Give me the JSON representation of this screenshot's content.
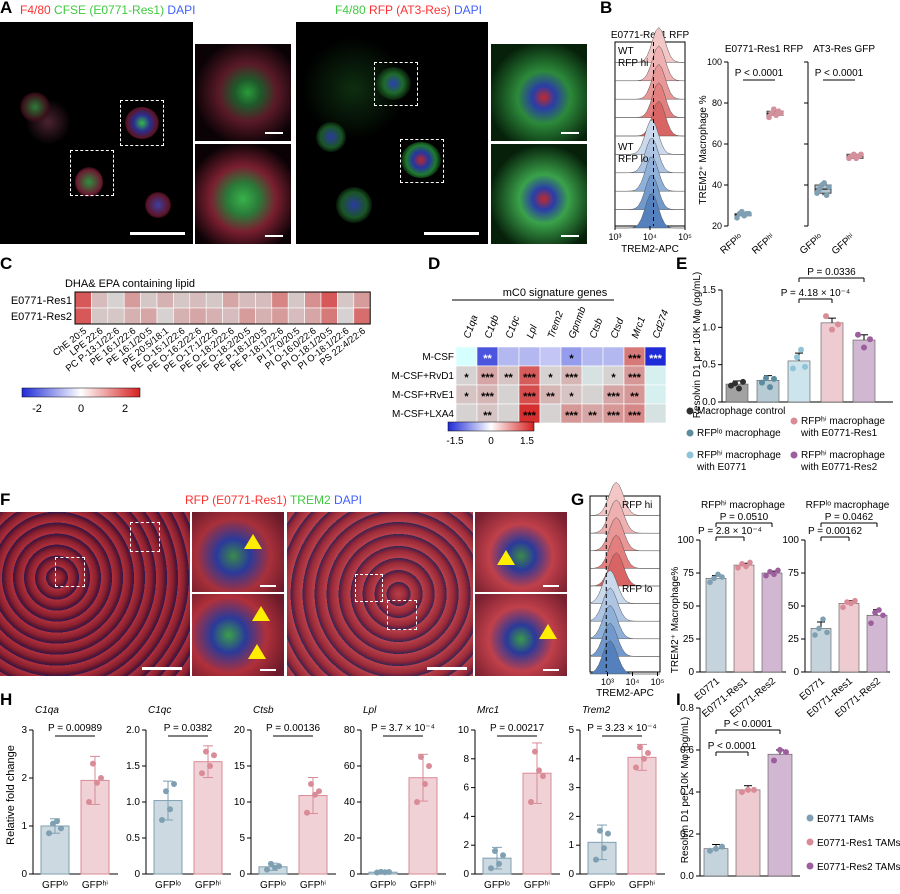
{
  "panels": {
    "A": {
      "letter": "A",
      "left_channels": [
        {
          "text": "F4/80",
          "color": "#ff3030"
        },
        {
          "text": "CFSE (E0771-Res1)",
          "color": "#3ec93e"
        },
        {
          "text": "DAPI",
          "color": "#4060ff"
        }
      ],
      "right_channels": [
        {
          "text": "F4/80",
          "color": "#3ec93e"
        },
        {
          "text": "RFP (AT3-Res)",
          "color": "#ff3030"
        },
        {
          "text": "DAPI",
          "color": "#4060ff"
        }
      ]
    },
    "B": {
      "letter": "B",
      "hist_title": "E0771-Res1 RFP",
      "hist_labels": [
        "WT",
        "RFP hi",
        "WT",
        "RFP lo"
      ],
      "hist_axis": "TREM2-APC",
      "hist_ticks": [
        "10³",
        "10⁴",
        "10⁵"
      ],
      "y_label": "TREM2⁺ Macrophage %",
      "y_ticks": [
        "20",
        "40",
        "60",
        "80",
        "100"
      ],
      "plots": [
        {
          "title": "E0771-Res1 RFP",
          "cats": [
            "RFPˡᵒ",
            "RFPʰⁱ"
          ],
          "p": "P < 0.0001",
          "groups": [
            {
              "values": [
                24,
                26,
                27,
                25,
                26,
                26
              ],
              "mean": 25.5,
              "color": "#7f9fb2"
            },
            {
              "values": [
                73,
                75,
                77,
                74,
                76,
                75
              ],
              "mean": 75,
              "color": "#d4909c"
            }
          ]
        },
        {
          "title": "AT3-Res GFP",
          "cats": [
            "GFPˡᵒ",
            "GFPʰⁱ"
          ],
          "p": "P < 0.0001",
          "groups": [
            {
              "values": [
                36,
                38,
                40,
                41,
                35,
                39
              ],
              "mean": 38,
              "color": "#7f9fb2"
            },
            {
              "values": [
                53,
                54,
                55,
                53,
                54,
                55
              ],
              "mean": 54,
              "color": "#d4909c"
            }
          ]
        }
      ]
    },
    "C": {
      "letter": "C",
      "title": "DHA& EPA containing lipid",
      "rows": [
        "E0771-Res1",
        "E0771-Res2"
      ],
      "cols": [
        "ChE 20:5",
        "LPE 22:6",
        "PC P-13:1/22:6",
        "PE 16:1/22:6",
        "PE 16:1/20:5",
        "PE 20:5/18:1",
        "PE O-15:1/22:6",
        "PE O-16:2/22:6",
        "PE O-17:1/22:6",
        "PE O-18:2/22:6",
        "PE O-18:2/20:5",
        "PE P-18:1/20:5",
        "PE P-18:1/22:6",
        "PI 17:0/20:5",
        "PI O-16:0/22:6",
        "PI O-18:1/20:5",
        "PI O-18:1/22:6",
        "PS 22:4/22:6"
      ],
      "values": [
        [
          1.5,
          0.6,
          0.4,
          0.9,
          0.5,
          0.7,
          0.5,
          0.6,
          0.5,
          0.8,
          0.6,
          0.6,
          1.1,
          0.5,
          1.0,
          1.5,
          0.5,
          0.9
        ],
        [
          1.5,
          0.5,
          0.5,
          0.7,
          0.8,
          0.4,
          0.7,
          0.8,
          0.7,
          0.6,
          0.9,
          0.7,
          0.9,
          0.6,
          0.8,
          1.2,
          0.4,
          1.3
        ]
      ],
      "legend_ticks": [
        "-2",
        "0",
        "2"
      ]
    },
    "D": {
      "letter": "D",
      "title": "mC0 signature genes",
      "genes": [
        "C1qa",
        "C1qb",
        "C1qc",
        "Lpl",
        "Trem2",
        "Gpnmb",
        "Ctsb",
        "Ctsd",
        "Mrc1",
        "Cd274"
      ],
      "rows": [
        "M-CSF",
        "M-CSF+RvD1",
        "M-CSF+RvE1",
        "M-CSF+LXA4"
      ],
      "values": [
        [
          0,
          -1.2,
          -0.5,
          -0.5,
          -0.4,
          -0.7,
          -0.5,
          -0.5,
          0.9,
          -1.5
        ],
        [
          0.3,
          0.6,
          0.4,
          1.1,
          0.3,
          0.5,
          0.2,
          0.3,
          0.7,
          0.1
        ],
        [
          0.4,
          0.5,
          0.3,
          1.2,
          0.5,
          0.4,
          0.3,
          0.6,
          0.7,
          0.1
        ],
        [
          0.3,
          0.4,
          0.3,
          1.4,
          0.3,
          0.7,
          0.6,
          0.7,
          0.8,
          0.2
        ]
      ],
      "stars": [
        [
          "",
          "**",
          "",
          "",
          "",
          "*",
          "",
          "",
          "***",
          "***"
        ],
        [
          "*",
          "***",
          "**",
          "***",
          "*",
          "***",
          "",
          "*",
          "***",
          ""
        ],
        [
          "*",
          "***",
          "",
          "***",
          "**",
          "*",
          "",
          "***",
          "**",
          ""
        ],
        [
          "",
          "**",
          "",
          "***",
          "",
          "***",
          "**",
          "***",
          "***",
          ""
        ]
      ],
      "legend_ticks": [
        "-1.5",
        "0",
        "1.5"
      ]
    },
    "E": {
      "letter": "E",
      "y_label": "Resolvin D1 per 10K Mφ (pg/mL)",
      "y_ticks": [
        "0.0",
        "0.5",
        "1.0",
        "1.5"
      ],
      "p_values": [
        "P = 0.0336",
        "P = 4.18 × 10⁻⁴"
      ],
      "bars": [
        {
          "mean": 0.24,
          "points": [
            0.22,
            0.25,
            0.18,
            0.27
          ],
          "color": "#303030"
        },
        {
          "mean": 0.29,
          "points": [
            0.26,
            0.32,
            0.2,
            0.31
          ],
          "color": "#5d8ba0"
        },
        {
          "mean": 0.55,
          "points": [
            0.45,
            0.6,
            0.7,
            0.47
          ],
          "color": "#8fc3d8"
        },
        {
          "mean": 1.06,
          "points": [
            1.15,
            0.97,
            1.04
          ],
          "color": "#d98b97"
        },
        {
          "mean": 0.83,
          "points": [
            0.9,
            0.73,
            0.84
          ],
          "color": "#9c5e9c"
        }
      ],
      "legend": [
        "Macrophage control",
        "RFPˡᵒ macrophage",
        "RFPʰⁱ macrophage with E0771",
        "RFPʰⁱ macrophage with E0771-Res1",
        "RFPʰⁱ macrophage with E0771-Res2"
      ]
    },
    "F": {
      "letter": "F",
      "channels": [
        {
          "text": "RFP (E0771-Res1)",
          "color": "#ff3030"
        },
        {
          "text": "TREM2",
          "color": "#3ec93e"
        },
        {
          "text": "DAPI",
          "color": "#4060ff"
        }
      ]
    },
    "G": {
      "letter": "G",
      "hist_labels": [
        "RFP hi",
        "RFP lo"
      ],
      "hist_axis": "TREM2-APC",
      "hist_ticks": [
        "10³",
        "10⁴",
        "10⁵"
      ],
      "y_label": "TREM2⁺ Macrophage%",
      "y_ticks": [
        "0",
        "25",
        "50",
        "75",
        "100"
      ],
      "cats": [
        "E0771",
        "E0771-Res1",
        "E0771-Res2"
      ],
      "plots": [
        {
          "title": "RFPʰⁱ macrophage",
          "p": [
            "P = 0.0510",
            "P = 2.8 × 10⁻⁴"
          ],
          "bars": [
            {
              "mean": 71,
              "points": [
                68,
                71,
                74,
                72
              ]
            },
            {
              "mean": 81,
              "points": [
                79,
                82,
                80,
                83
              ]
            },
            {
              "mean": 75,
              "points": [
                73,
                76,
                74,
                77
              ]
            }
          ]
        },
        {
          "title": "RFPˡᵒ macrophage",
          "p": [
            "P = 0.0462",
            "P = 0.00162"
          ],
          "bars": [
            {
              "mean": 33,
              "points": [
                28,
                33,
                40,
                30
              ]
            },
            {
              "mean": 52,
              "points": [
                49,
                53,
                52,
                54
              ]
            },
            {
              "mean": 43,
              "points": [
                37,
                45,
                47,
                43
              ]
            }
          ]
        }
      ],
      "colors": [
        "#7f9fb2",
        "#d98b97",
        "#9c5e9c"
      ]
    },
    "H": {
      "letter": "H",
      "y_label": "Relative fold change",
      "cats": [
        "GFPˡᵒ",
        "GFPʰⁱ"
      ],
      "plots": [
        {
          "gene": "C1qa",
          "p": "P = 0.00989",
          "ylim": [
            0,
            3
          ],
          "ticks": [
            "0",
            "1",
            "2",
            "3"
          ],
          "lo": {
            "mean": 1.0,
            "sd": 0.15,
            "points": [
              0.85,
              1.05,
              1.1,
              0.95
            ]
          },
          "hi": {
            "mean": 1.95,
            "sd": 0.5,
            "points": [
              1.5,
              2.3,
              1.9,
              2.0
            ]
          }
        },
        {
          "gene": "C1qc",
          "p": "P = 0.0382",
          "ylim": [
            0,
            2.0
          ],
          "ticks": [
            "0",
            "0.5",
            "1.0",
            "1.5",
            "2.0"
          ],
          "lo": {
            "mean": 1.02,
            "sd": 0.27,
            "points": [
              0.75,
              1.15,
              0.9,
              1.25
            ]
          },
          "hi": {
            "mean": 1.56,
            "sd": 0.22,
            "points": [
              1.4,
              1.7,
              1.5,
              1.65
            ]
          }
        },
        {
          "gene": "Ctsb",
          "p": "P = 0.00136",
          "ylim": [
            0,
            20
          ],
          "ticks": [
            "0",
            "5",
            "10",
            "15",
            "20"
          ],
          "lo": {
            "mean": 1.0,
            "sd": 0.5,
            "points": [
              0.6,
              1.4,
              0.9,
              1.1
            ]
          },
          "hi": {
            "mean": 10.9,
            "sd": 2.5,
            "points": [
              8.5,
              12.5,
              11.0,
              11.5
            ]
          }
        },
        {
          "gene": "Lpl",
          "p": "P = 3.7 × 10⁻⁴",
          "ylim": [
            0,
            80
          ],
          "ticks": [
            "0",
            "20",
            "40",
            "60",
            "80"
          ],
          "lo": {
            "mean": 1.0,
            "sd": 0.4,
            "points": [
              0.8,
              1.2,
              1.0,
              1.1
            ]
          },
          "hi": {
            "mean": 53.5,
            "sd": 13,
            "points": [
              40,
              65,
              50,
              60
            ]
          }
        },
        {
          "gene": "Mrc1",
          "p": "P = 0.00217",
          "ylim": [
            0,
            10
          ],
          "ticks": [
            "0",
            "2",
            "4",
            "6",
            "8",
            "10"
          ],
          "lo": {
            "mean": 1.1,
            "sd": 0.75,
            "points": [
              0.4,
              1.6,
              0.7,
              1.3
            ]
          },
          "hi": {
            "mean": 7.0,
            "sd": 2.1,
            "points": [
              5.0,
              8.5,
              7.2,
              6.8
            ]
          }
        },
        {
          "gene": "Trem2",
          "p": "P = 3.23 × 10⁻⁴",
          "ylim": [
            0,
            5
          ],
          "ticks": [
            "0",
            "1",
            "2",
            "3",
            "4",
            "5"
          ],
          "lo": {
            "mean": 1.1,
            "sd": 0.6,
            "points": [
              0.5,
              1.5,
              0.9,
              1.4
            ]
          },
          "hi": {
            "mean": 4.05,
            "sd": 0.45,
            "points": [
              3.7,
              4.4,
              4.0,
              4.2
            ]
          }
        }
      ],
      "colors": [
        "#7f9fb2",
        "#d98b97"
      ]
    },
    "I": {
      "letter": "I",
      "y_label": "Resolvin D1 per 10K Mφ (pg/mL)",
      "y_ticks": [
        "0.0",
        "0.2",
        "0.4",
        "0.6",
        "0.8"
      ],
      "p_values": [
        "P < 0.0001",
        "P < 0.0001"
      ],
      "bars": [
        {
          "mean": 0.13,
          "points": [
            0.12,
            0.13,
            0.14
          ],
          "color": "#7f9fb2"
        },
        {
          "mean": 0.41,
          "points": [
            0.4,
            0.41,
            0.41
          ],
          "color": "#d98b97"
        },
        {
          "mean": 0.58,
          "points": [
            0.55,
            0.6,
            0.59
          ],
          "color": "#9c5e9c"
        }
      ],
      "legend": [
        "E0771 TAMs",
        "E0771-Res1 TAMs",
        "E0771-Res2 TAMs"
      ]
    }
  }
}
